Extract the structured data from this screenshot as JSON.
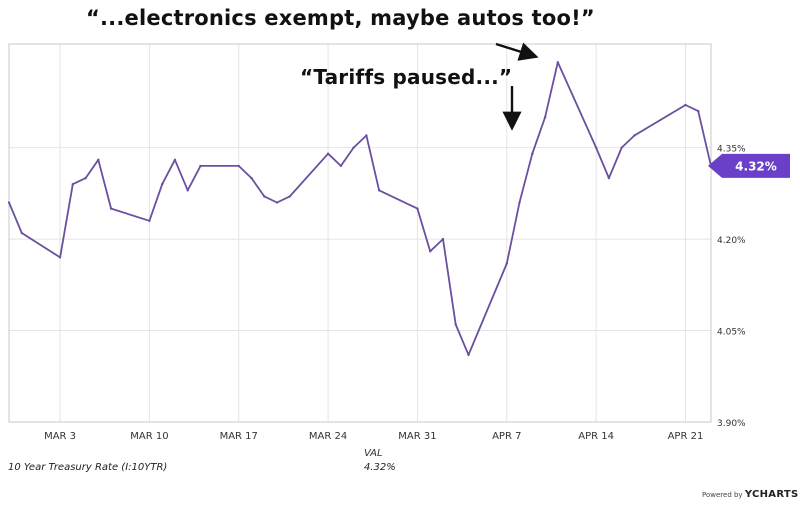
{
  "annotations": {
    "first": "“...electronics exempt, maybe autos too!”",
    "second": "“Tariffs paused...”"
  },
  "table": {
    "column_header": "VAL",
    "series_name": "10 Year Treasury Rate (I:10YTR)",
    "series_value": "4.32%"
  },
  "footer": {
    "powered_by": "Powered by",
    "brand": "YCHARTS"
  },
  "colors": {
    "line": "#6b4fa0",
    "badge": "#6a40c8",
    "arrow": "#111111",
    "axis_text": "#333333",
    "grid": "#e4e4e4"
  },
  "chart_data": {
    "type": "line",
    "series": [
      {
        "name": "10 Year Treasury Rate (I:10YTR)",
        "x": [
          "2025-02-27",
          "2025-02-28",
          "2025-03-03",
          "2025-03-04",
          "2025-03-05",
          "2025-03-06",
          "2025-03-07",
          "2025-03-10",
          "2025-03-11",
          "2025-03-12",
          "2025-03-13",
          "2025-03-14",
          "2025-03-17",
          "2025-03-18",
          "2025-03-19",
          "2025-03-20",
          "2025-03-21",
          "2025-03-24",
          "2025-03-25",
          "2025-03-26",
          "2025-03-27",
          "2025-03-28",
          "2025-03-31",
          "2025-04-01",
          "2025-04-02",
          "2025-04-03",
          "2025-04-04",
          "2025-04-07",
          "2025-04-08",
          "2025-04-09",
          "2025-04-10",
          "2025-04-11",
          "2025-04-14",
          "2025-04-15",
          "2025-04-16",
          "2025-04-17",
          "2025-04-21",
          "2025-04-22",
          "2025-04-23"
        ],
        "y": [
          4.26,
          4.21,
          4.17,
          4.29,
          4.3,
          4.33,
          4.25,
          4.23,
          4.29,
          4.33,
          4.28,
          4.32,
          4.32,
          4.3,
          4.27,
          4.26,
          4.27,
          4.34,
          4.32,
          4.35,
          4.37,
          4.28,
          4.25,
          4.18,
          4.2,
          4.06,
          4.01,
          4.16,
          4.26,
          4.34,
          4.4,
          4.49,
          4.35,
          4.3,
          4.35,
          4.37,
          4.42,
          4.41,
          4.32
        ]
      }
    ],
    "x_tick_labels": [
      "MAR 3",
      "MAR 10",
      "MAR 17",
      "MAR 24",
      "MAR 31",
      "APR 7",
      "APR 14",
      "APR 21"
    ],
    "x_tick_dates": [
      "2025-03-03",
      "2025-03-10",
      "2025-03-17",
      "2025-03-24",
      "2025-03-31",
      "2025-04-07",
      "2025-04-14",
      "2025-04-21"
    ],
    "y_ticks": [
      3.9,
      4.05,
      4.2,
      4.35
    ],
    "y_tick_labels": [
      "3.90%",
      "4.05%",
      "4.20%",
      "4.35%"
    ],
    "ylim": [
      3.9,
      4.52
    ],
    "xlim": [
      "2025-02-27",
      "2025-04-23"
    ],
    "grid": true,
    "current_value_label": "4.32%",
    "title": "",
    "xlabel": "",
    "ylabel": ""
  }
}
